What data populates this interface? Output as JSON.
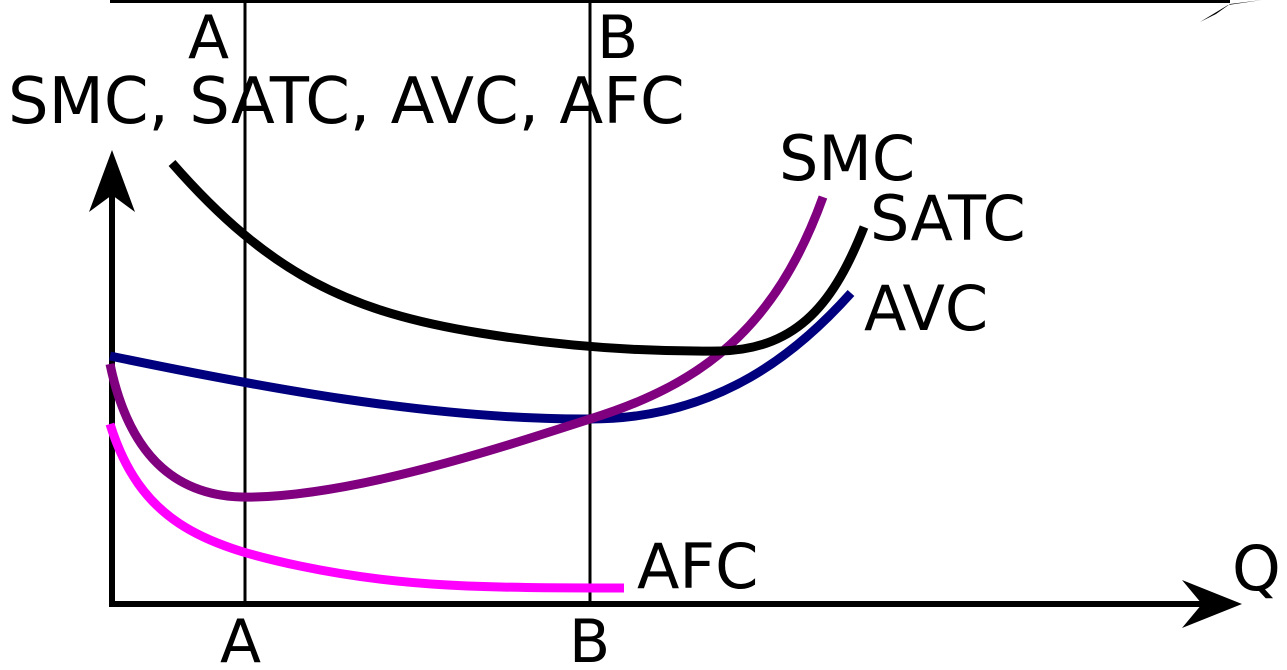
{
  "y_axis_label": "SMC, SATC, AVC, AFC",
  "x_axis_label": "Q",
  "markers": {
    "a": "A",
    "b": "B"
  },
  "curves": {
    "smc": {
      "label": "SMC",
      "color": "#800080"
    },
    "satc": {
      "label": "SATC",
      "color": "#000000"
    },
    "avc": {
      "label": "AVC",
      "color": "#00007f"
    },
    "afc": {
      "label": "AFC",
      "color": "#ff00ff"
    }
  },
  "axis_color": "#000000"
}
